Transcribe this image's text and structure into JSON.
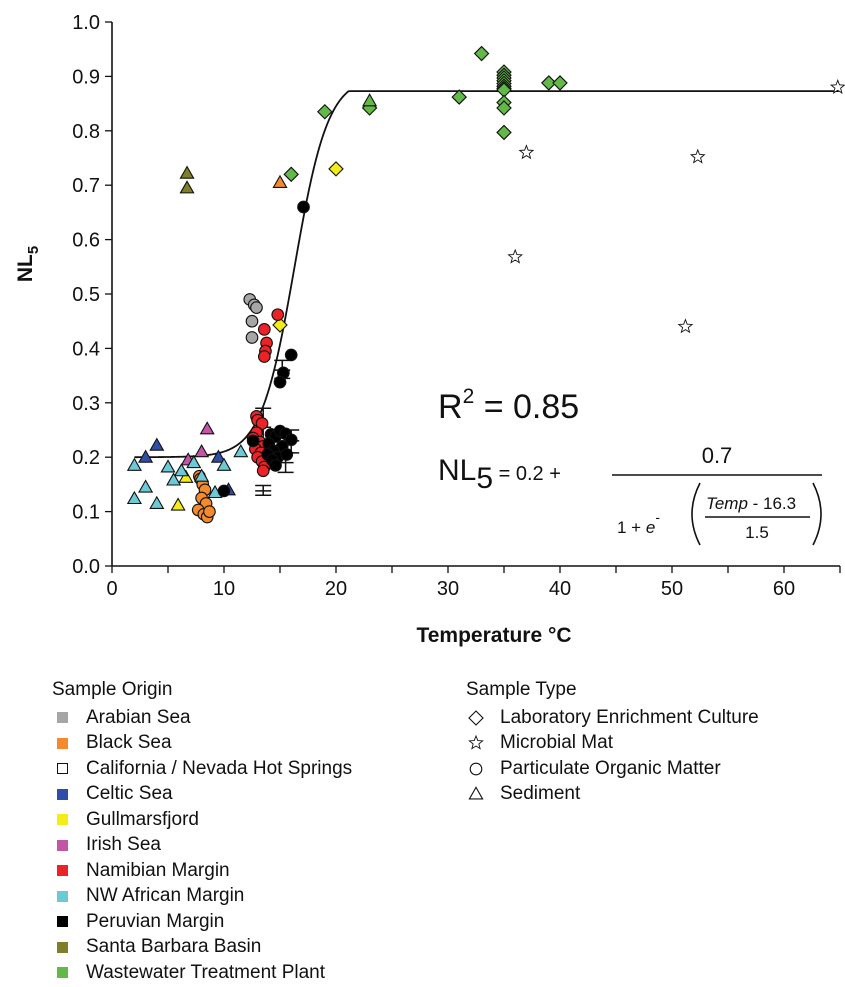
{
  "chart_data": {
    "type": "scatter",
    "title": "",
    "xlabel": "Temperature °C",
    "ylabel": "NL",
    "ylabel_sub": "5",
    "xlim": [
      0,
      65
    ],
    "ylim": [
      0.0,
      1.0
    ],
    "x_ticks": [
      "0",
      "10",
      "20",
      "30",
      "40",
      "50",
      "60"
    ],
    "y_ticks": [
      "0.0",
      "0.1",
      "0.2",
      "0.3",
      "0.4",
      "0.5",
      "0.6",
      "0.7",
      "0.8",
      "0.9",
      "1.0"
    ],
    "grid": false,
    "annotations": {
      "r2_prefix": "R",
      "r2_sup": "2",
      "r2_value": " = 0.85",
      "eq_lhs": "NL",
      "eq_lhs_sub": "5",
      "eq_const": " = 0.2 + ",
      "eq_numerator": "0.7",
      "eq_denom_prefix": "1 + ",
      "eq_e": "e",
      "eq_minus": "-",
      "eq_frac_top_italic": "Temp",
      "eq_frac_top_rest": " - 16.3",
      "eq_frac_bottom": "1.5"
    },
    "fit_curve": {
      "base": 0.2,
      "amplitude": 0.7,
      "midpoint": 16.3,
      "scale": 1.5,
      "min_value": 0.165,
      "max_value": 0.873
    },
    "series": [
      {
        "origin": "Arabian Sea",
        "type": "Particulate Organic Matter",
        "points": [
          [
            12.3,
            0.49
          ],
          [
            12.7,
            0.48
          ],
          [
            12.9,
            0.475
          ],
          [
            12.5,
            0.45
          ],
          [
            12.5,
            0.42
          ]
        ]
      },
      {
        "origin": "Black Sea",
        "type": "Particulate Organic Matter",
        "points": [
          [
            7.8,
            0.165
          ],
          [
            7.9,
            0.16
          ],
          [
            8.1,
            0.15
          ],
          [
            8.3,
            0.14
          ],
          [
            8.0,
            0.125
          ],
          [
            8.4,
            0.115
          ],
          [
            7.7,
            0.103
          ],
          [
            8.2,
            0.095
          ],
          [
            8.5,
            0.09
          ],
          [
            8.7,
            0.1
          ]
        ]
      },
      {
        "origin": "Black Sea",
        "type": "Sediment",
        "points": [
          [
            15.0,
            0.705
          ]
        ]
      },
      {
        "origin": "California / Nevada Hot Springs",
        "type": "Microbial Mat",
        "points": [
          [
            37.0,
            0.76
          ],
          [
            36.0,
            0.568
          ],
          [
            52.3,
            0.752
          ],
          [
            51.2,
            0.44
          ],
          [
            64.8,
            0.88
          ]
        ]
      },
      {
        "origin": "Celtic Sea",
        "type": "Sediment",
        "points": [
          [
            3.0,
            0.2
          ],
          [
            4.0,
            0.222
          ],
          [
            9.5,
            0.2
          ],
          [
            10.4,
            0.14
          ]
        ]
      },
      {
        "origin": "Gullmarsfjord",
        "type": "Laboratory Enrichment Culture",
        "points": [
          [
            20.0,
            0.73
          ],
          [
            15.0,
            0.443
          ]
        ]
      },
      {
        "origin": "Gullmarsfjord",
        "type": "Sediment",
        "points": [
          [
            5.9,
            0.112
          ],
          [
            6.6,
            0.163
          ]
        ]
      },
      {
        "origin": "Irish Sea",
        "type": "Sediment",
        "points": [
          [
            8.5,
            0.252
          ],
          [
            8.0,
            0.21
          ],
          [
            6.8,
            0.195
          ]
        ]
      },
      {
        "origin": "Namibian Margin",
        "type": "Particulate Organic Matter",
        "points": [
          [
            14.8,
            0.462
          ],
          [
            13.6,
            0.435
          ],
          [
            13.8,
            0.41
          ],
          [
            13.7,
            0.395
          ],
          [
            13.6,
            0.385
          ],
          [
            12.9,
            0.275
          ],
          [
            13.0,
            0.268
          ],
          [
            13.4,
            0.262
          ],
          [
            12.9,
            0.245
          ],
          [
            12.6,
            0.235
          ],
          [
            13.2,
            0.228
          ],
          [
            13.5,
            0.22
          ],
          [
            12.8,
            0.215
          ],
          [
            13.3,
            0.208
          ],
          [
            13.0,
            0.2
          ],
          [
            13.4,
            0.192
          ],
          [
            13.6,
            0.182
          ],
          [
            13.5,
            0.175
          ]
        ]
      },
      {
        "origin": "NW African Margin",
        "type": "Sediment",
        "points": [
          [
            2.0,
            0.185
          ],
          [
            3.0,
            0.145
          ],
          [
            2.0,
            0.124
          ],
          [
            4.0,
            0.115
          ],
          [
            5.0,
            0.182
          ],
          [
            6.2,
            0.175
          ],
          [
            5.5,
            0.158
          ],
          [
            7.3,
            0.19
          ],
          [
            8.0,
            0.165
          ],
          [
            9.2,
            0.135
          ],
          [
            10.0,
            0.185
          ],
          [
            11.5,
            0.21
          ]
        ]
      },
      {
        "origin": "Peruvian Margin",
        "type": "Particulate Organic Matter",
        "points": [
          [
            17.1,
            0.66
          ],
          [
            16.0,
            0.388
          ],
          [
            15.3,
            0.355
          ],
          [
            15.0,
            0.338
          ],
          [
            12.6,
            0.23
          ],
          [
            14.2,
            0.242
          ],
          [
            14.6,
            0.238
          ],
          [
            15.0,
            0.248
          ],
          [
            15.5,
            0.243
          ],
          [
            16.0,
            0.232
          ],
          [
            14.0,
            0.225
          ],
          [
            15.2,
            0.22
          ],
          [
            14.4,
            0.212
          ],
          [
            13.9,
            0.205
          ],
          [
            14.8,
            0.2
          ],
          [
            15.6,
            0.205
          ],
          [
            14.3,
            0.195
          ],
          [
            14.6,
            0.185
          ],
          [
            10.0,
            0.138
          ]
        ]
      },
      {
        "origin": "Santa Barbara Basin",
        "type": "Sediment",
        "points": [
          [
            6.7,
            0.722
          ],
          [
            6.7,
            0.695
          ]
        ]
      },
      {
        "origin": "Wastewater Treatment Plant",
        "type": "Laboratory Enrichment Culture",
        "points": [
          [
            33.0,
            0.942
          ],
          [
            35.0,
            0.908
          ],
          [
            35.0,
            0.902
          ],
          [
            35.0,
            0.897
          ],
          [
            35.0,
            0.892
          ],
          [
            35.0,
            0.887
          ],
          [
            35.0,
            0.882
          ],
          [
            35.0,
            0.878
          ],
          [
            35.0,
            0.875
          ],
          [
            35.0,
            0.852
          ],
          [
            35.0,
            0.842
          ],
          [
            35.0,
            0.797
          ],
          [
            39.0,
            0.888
          ],
          [
            40.0,
            0.888
          ],
          [
            31.0,
            0.862
          ],
          [
            23.0,
            0.842
          ],
          [
            19.0,
            0.835
          ],
          [
            16.0,
            0.72
          ]
        ]
      },
      {
        "origin": "Wastewater Treatment Plant",
        "type": "Sediment",
        "points": [
          [
            23.0,
            0.855
          ]
        ]
      }
    ],
    "error_bars": [
      {
        "x": 13.5,
        "center": 0.138,
        "low": 0.13,
        "high": 0.148
      },
      {
        "x": 13.5,
        "center": 0.255,
        "low": 0.22,
        "high": 0.29
      },
      {
        "x": 15.2,
        "center": 0.36,
        "low": 0.345,
        "high": 0.378
      },
      {
        "x": 15.5,
        "center": 0.19,
        "low": 0.172,
        "high": 0.208
      },
      {
        "x": 16.0,
        "center": 0.23,
        "low": 0.208,
        "high": 0.25
      }
    ]
  },
  "colors": {
    "Arabian Sea": "#a6a6a6",
    "Black Sea": "#f58a2c",
    "California / Nevada Hot Springs": "#ffffff",
    "Celtic Sea": "#2f4ea8",
    "Gullmarsfjord": "#f4ec16",
    "Irish Sea": "#c355a7",
    "Namibian Margin": "#ed2226",
    "NW African Margin": "#6cc9d6",
    "Peruvian Margin": "#000000",
    "Santa Barbara Basin": "#7f7f2a",
    "Wastewater Treatment Plant": "#63b947"
  },
  "legend_origin": {
    "title": "Sample Origin",
    "items": [
      {
        "label": "Arabian Sea",
        "color": "#a6a6a6",
        "icon": "filled-square"
      },
      {
        "label": "Black Sea",
        "color": "#f58a2c",
        "icon": "filled-square"
      },
      {
        "label": "California / Nevada Hot Springs",
        "color": "#ffffff",
        "icon": "open-square"
      },
      {
        "label": "Celtic Sea",
        "color": "#2f4ea8",
        "icon": "filled-square"
      },
      {
        "label": "Gullmarsfjord",
        "color": "#f4ec16",
        "icon": "filled-square"
      },
      {
        "label": "Irish Sea",
        "color": "#c355a7",
        "icon": "filled-square"
      },
      {
        "label": "Namibian Margin",
        "color": "#ed2226",
        "icon": "filled-square"
      },
      {
        "label": "NW African Margin",
        "color": "#6cc9d6",
        "icon": "filled-square"
      },
      {
        "label": "Peruvian Margin",
        "color": "#000000",
        "icon": "filled-square"
      },
      {
        "label": "Santa Barbara Basin",
        "color": "#7f7f2a",
        "icon": "filled-square"
      },
      {
        "label": "Wastewater Treatment Plant",
        "color": "#63b947",
        "icon": "filled-square"
      }
    ]
  },
  "legend_type": {
    "title": "Sample Type",
    "items": [
      {
        "label": "Laboratory Enrichment Culture",
        "icon": "diamond-icon"
      },
      {
        "label": "Microbial Mat",
        "icon": "star-icon"
      },
      {
        "label": "Particulate Organic Matter",
        "icon": "circle-icon"
      },
      {
        "label": "Sediment",
        "icon": "triangle-icon"
      }
    ]
  }
}
